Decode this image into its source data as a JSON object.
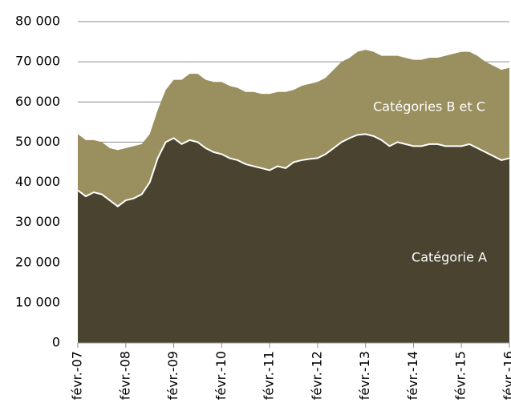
{
  "chart_data": {
    "type": "stacked-area",
    "categories": [
      "févr.-07",
      null,
      null,
      null,
      null,
      null,
      "févr.-08",
      null,
      null,
      null,
      null,
      null,
      "févr.-09",
      null,
      null,
      null,
      null,
      null,
      "févr.-10",
      null,
      null,
      null,
      null,
      null,
      "févr.-11",
      null,
      null,
      null,
      null,
      null,
      "févr.-12",
      null,
      null,
      null,
      null,
      null,
      "févr.-13",
      null,
      null,
      null,
      null,
      null,
      "févr.-14",
      null,
      null,
      null,
      null,
      null,
      "févr.-15",
      null,
      null,
      null,
      null,
      null,
      "févr.-16"
    ],
    "series": [
      {
        "name": "Catégorie A",
        "color": "#4a4330",
        "values": [
          38000,
          36500,
          37500,
          37000,
          35500,
          34000,
          35500,
          36000,
          37000,
          40000,
          46000,
          50000,
          51000,
          49500,
          50500,
          50000,
          48500,
          47500,
          47000,
          46000,
          45500,
          44500,
          44000,
          43500,
          43000,
          44000,
          43500,
          45000,
          45500,
          45800,
          46000,
          47000,
          48500,
          50000,
          51000,
          51800,
          52000,
          51500,
          50500,
          49000,
          50000,
          49500,
          49000,
          49000,
          49500,
          49500,
          49000,
          49000,
          49000,
          49500,
          48500,
          47500,
          46500,
          45500,
          46000
        ]
      },
      {
        "name": "Catégories B et C",
        "color": "#9a8f5e",
        "values": [
          14000,
          14000,
          13000,
          13000,
          13000,
          14000,
          13000,
          13000,
          12500,
          12000,
          12000,
          13000,
          14500,
          16000,
          16500,
          17000,
          17000,
          17500,
          18000,
          18000,
          18000,
          18000,
          18500,
          18500,
          19000,
          18500,
          19000,
          18000,
          18500,
          18700,
          19000,
          19000,
          19500,
          20000,
          20000,
          20700,
          21000,
          21000,
          21000,
          22500,
          21500,
          21500,
          21500,
          21500,
          21500,
          21500,
          22500,
          23000,
          23500,
          23000,
          23000,
          22500,
          22500,
          22500,
          22500
        ]
      }
    ],
    "ylim": [
      0,
      80000
    ],
    "yticks": [
      0,
      {
        "value": 10000,
        "label": "10 000"
      },
      {
        "value": 20000,
        "label": "20 000"
      },
      {
        "value": 30000,
        "label": "30 000"
      },
      {
        "value": 40000,
        "label": "40 000"
      },
      {
        "value": 50000,
        "label": "50 000"
      },
      {
        "value": 60000,
        "label": "60 000"
      },
      {
        "value": 70000,
        "label": "70 000"
      },
      {
        "value": 80000,
        "label": "80 000"
      }
    ],
    "grid": true
  }
}
